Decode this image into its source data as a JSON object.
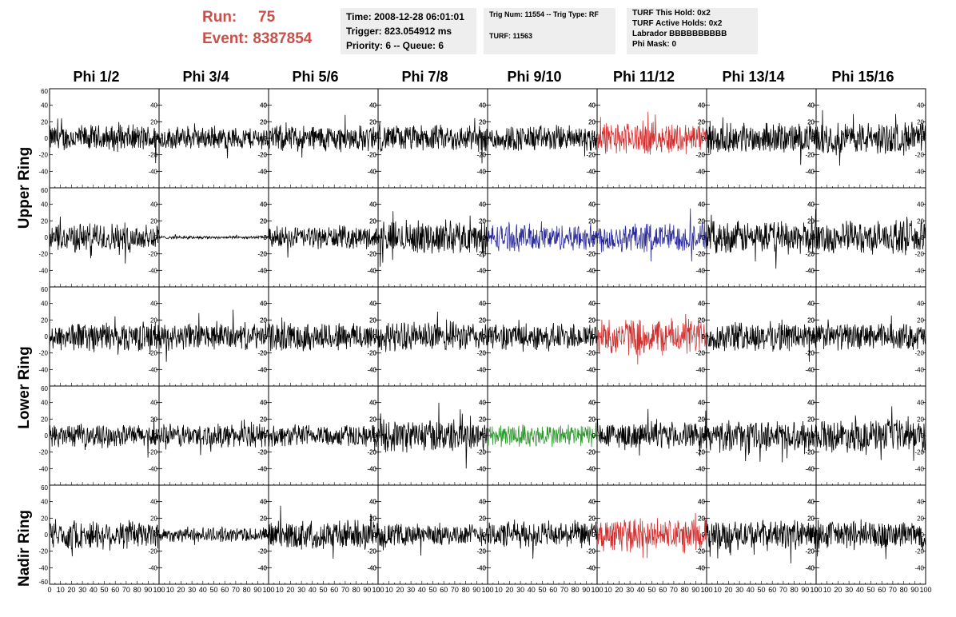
{
  "run_info": {
    "run_label": "Run:",
    "run_value": "75",
    "event_label": "Event:",
    "event_value": "8387854"
  },
  "box1": {
    "time": "Time: 2008-12-28 06:01:01",
    "trigger": "Trigger: 823.054912 ms",
    "priority": "Priority: 6 -- Queue: 6"
  },
  "box2": {
    "trig": "Trig Num: 11554 -- Trig Type: RF",
    "turf": "TURF: 11563"
  },
  "box3": {
    "hold": "TURF This Hold: 0x2",
    "active": "TURF Active Holds: 0x2",
    "labrador": "Labrador BBBBBBBBBB",
    "phimask": "Phi Mask: 0"
  },
  "columns": [
    "Phi 1/2",
    "Phi 3/4",
    "Phi 5/6",
    "Phi 7/8",
    "Phi 9/10",
    "Phi 11/12",
    "Phi 13/14",
    "Phi 15/16"
  ],
  "rings": {
    "upper": "Upper Ring",
    "lower": "Lower Ring",
    "nadir": "Nadir Ring"
  },
  "colors": {
    "black": "#000000",
    "red": "#d03030",
    "blue": "#2a2a9a",
    "green": "#2a9a2a",
    "title": "#c8504a"
  },
  "chart_data": {
    "type": "line",
    "rows": 5,
    "cols": 8,
    "xlim": [
      0,
      100
    ],
    "ylim": [
      -60,
      60
    ],
    "y_ticks": [
      -60,
      -40,
      -20,
      0,
      20,
      40,
      60
    ],
    "x_ticks": [
      0,
      10,
      20,
      30,
      40,
      50,
      60,
      70,
      80,
      90,
      100
    ],
    "amplitudes": [
      [
        18,
        15,
        18,
        18,
        18,
        22,
        20,
        22
      ],
      [
        20,
        2,
        15,
        22,
        18,
        20,
        22,
        22
      ],
      [
        20,
        18,
        20,
        20,
        18,
        25,
        20,
        18
      ],
      [
        15,
        16,
        15,
        22,
        16,
        18,
        20,
        22
      ],
      [
        20,
        10,
        20,
        15,
        18,
        22,
        20,
        20
      ]
    ],
    "highlight": [
      {
        "row": 0,
        "col": 5,
        "color": "red"
      },
      {
        "row": 1,
        "col": 4,
        "color": "blue"
      },
      {
        "row": 1,
        "col": 5,
        "color": "blue"
      },
      {
        "row": 2,
        "col": 5,
        "color": "red"
      },
      {
        "row": 3,
        "col": 4,
        "color": "green"
      },
      {
        "row": 4,
        "col": 5,
        "color": "red"
      }
    ]
  }
}
